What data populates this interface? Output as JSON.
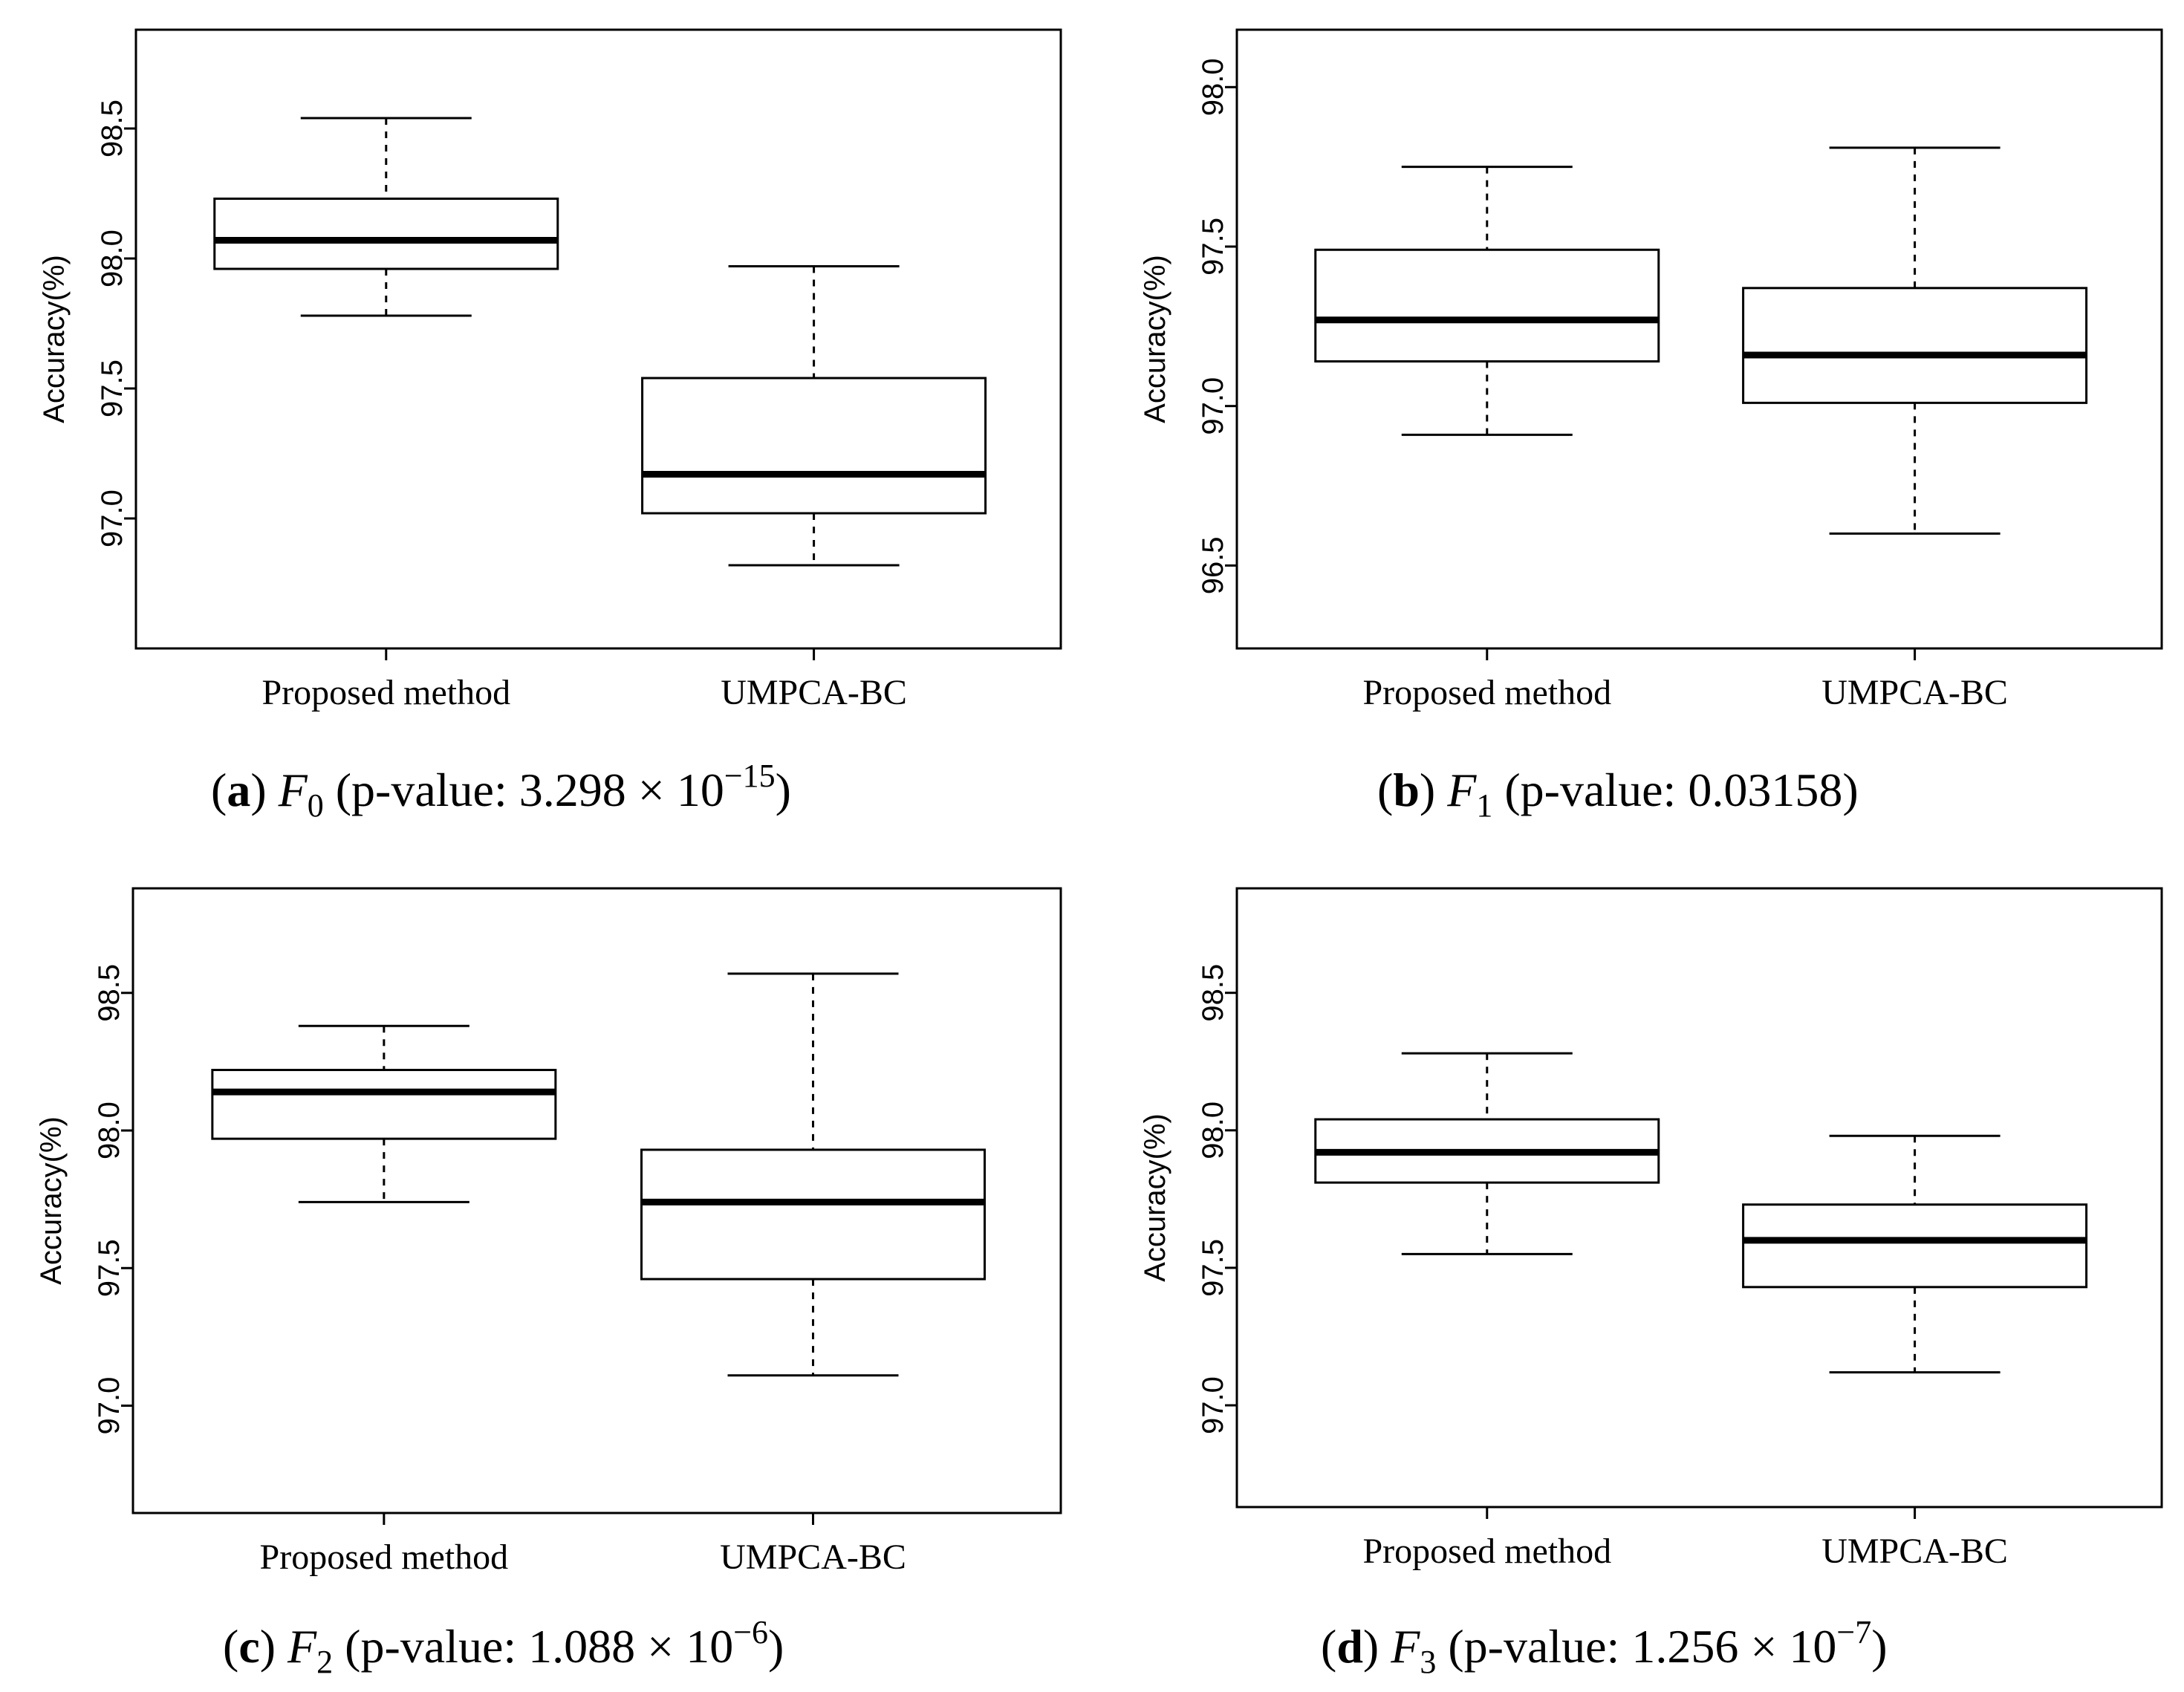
{
  "chart_data": [
    {
      "type": "boxplot",
      "panel": "a",
      "ylabel": "Accuracy(%)",
      "ylim": [
        96.5,
        98.88
      ],
      "yticks": [
        97.0,
        97.5,
        98.0,
        98.5
      ],
      "yticklabels": [
        "97.0",
        "97.5",
        "98.0",
        "98.5"
      ],
      "categories": [
        "Proposed method",
        "UMPCA-BC"
      ],
      "boxes": [
        {
          "min": 97.78,
          "q1": 97.96,
          "median": 98.07,
          "q3": 98.23,
          "max": 98.54
        },
        {
          "min": 96.82,
          "q1": 97.02,
          "median": 97.17,
          "q3": 97.54,
          "max": 97.97
        }
      ],
      "caption": {
        "label": "(a)",
        "var": "F",
        "sub": "0",
        "pre": " (p-value: 3.298 × 10",
        "sup": "−15",
        "post": ")"
      }
    },
    {
      "type": "boxplot",
      "panel": "b",
      "ylabel": "Accuracy(%)",
      "ylim": [
        96.24,
        98.18
      ],
      "yticks": [
        96.5,
        97.0,
        97.5,
        98.0
      ],
      "yticklabels": [
        "96.5",
        "97.0",
        "97.5",
        "98.0"
      ],
      "categories": [
        "Proposed method",
        "UMPCA-BC"
      ],
      "boxes": [
        {
          "min": 96.91,
          "q1": 97.14,
          "median": 97.27,
          "q3": 97.49,
          "max": 97.75
        },
        {
          "min": 96.6,
          "q1": 97.01,
          "median": 97.16,
          "q3": 97.37,
          "max": 97.81
        }
      ],
      "caption": {
        "label": "(b)",
        "var": "F",
        "sub": "1",
        "pre": " (p-value: 0.03158)",
        "sup": "",
        "post": ""
      }
    },
    {
      "type": "boxplot",
      "panel": "c",
      "ylabel": "Accuracy(%)",
      "ylim": [
        96.61,
        98.88
      ],
      "yticks": [
        97.0,
        97.5,
        98.0,
        98.5
      ],
      "yticklabels": [
        "97.0",
        "97.5",
        "98.0",
        "98.5"
      ],
      "categories": [
        "Proposed method",
        "UMPCA-BC"
      ],
      "boxes": [
        {
          "min": 97.74,
          "q1": 97.97,
          "median": 98.14,
          "q3": 98.22,
          "max": 98.38
        },
        {
          "min": 97.11,
          "q1": 97.46,
          "median": 97.74,
          "q3": 97.93,
          "max": 98.57
        }
      ],
      "caption": {
        "label": "(c)",
        "var": "F",
        "sub": "2",
        "pre": " (p-value: 1.088 × 10",
        "sup": "−6",
        "post": ")"
      }
    },
    {
      "type": "boxplot",
      "panel": "d",
      "ylabel": "Accuracy(%)",
      "ylim": [
        96.63,
        98.88
      ],
      "yticks": [
        97.0,
        97.5,
        98.0,
        98.5
      ],
      "yticklabels": [
        "97.0",
        "97.5",
        "98.0",
        "98.5"
      ],
      "categories": [
        "Proposed method",
        "UMPCA-BC"
      ],
      "boxes": [
        {
          "min": 97.55,
          "q1": 97.81,
          "median": 97.92,
          "q3": 98.04,
          "max": 98.28
        },
        {
          "min": 97.12,
          "q1": 97.43,
          "median": 97.6,
          "q3": 97.73,
          "max": 97.98
        }
      ],
      "caption": {
        "label": "(d)",
        "var": "F",
        "sub": "3",
        "pre": " (p-value: 1.256 × 10",
        "sup": "−7",
        "post": ")"
      }
    }
  ]
}
